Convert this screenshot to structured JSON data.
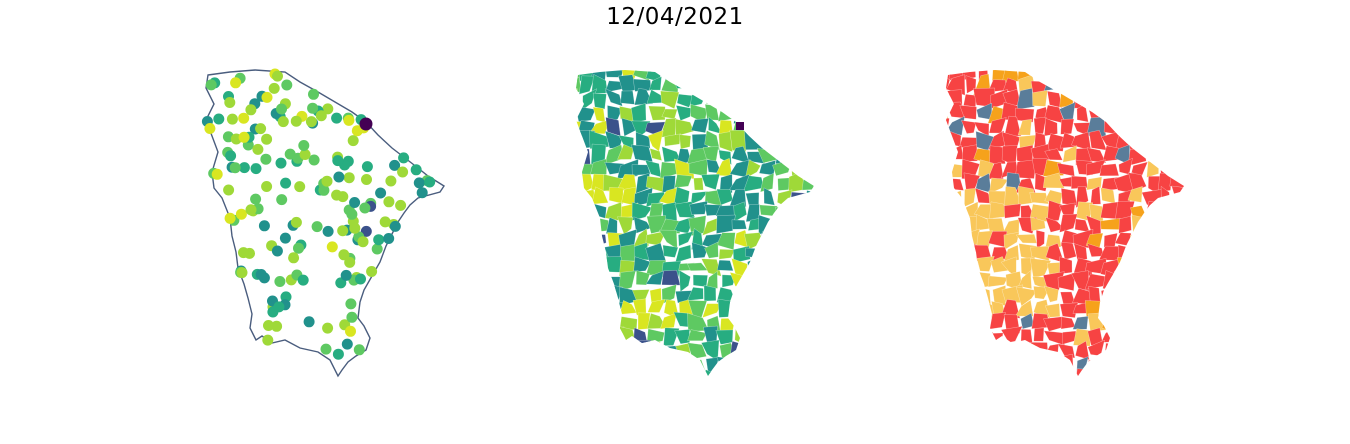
{
  "title": "12/04/2021",
  "panels": [
    {
      "id": "points",
      "kind": "point-map",
      "outline_color": "#4a5d7e"
    },
    {
      "id": "choropleth-viridis",
      "kind": "choropleth",
      "palette": [
        "#440154",
        "#3b528b",
        "#21918c",
        "#27ad81",
        "#5ec962",
        "#9fd938",
        "#d9e621"
      ]
    },
    {
      "id": "choropleth-categorical",
      "kind": "choropleth",
      "palette": [
        "#f74343",
        "#f9c75a",
        "#f6a21b",
        "#5a7d9a"
      ]
    }
  ]
}
